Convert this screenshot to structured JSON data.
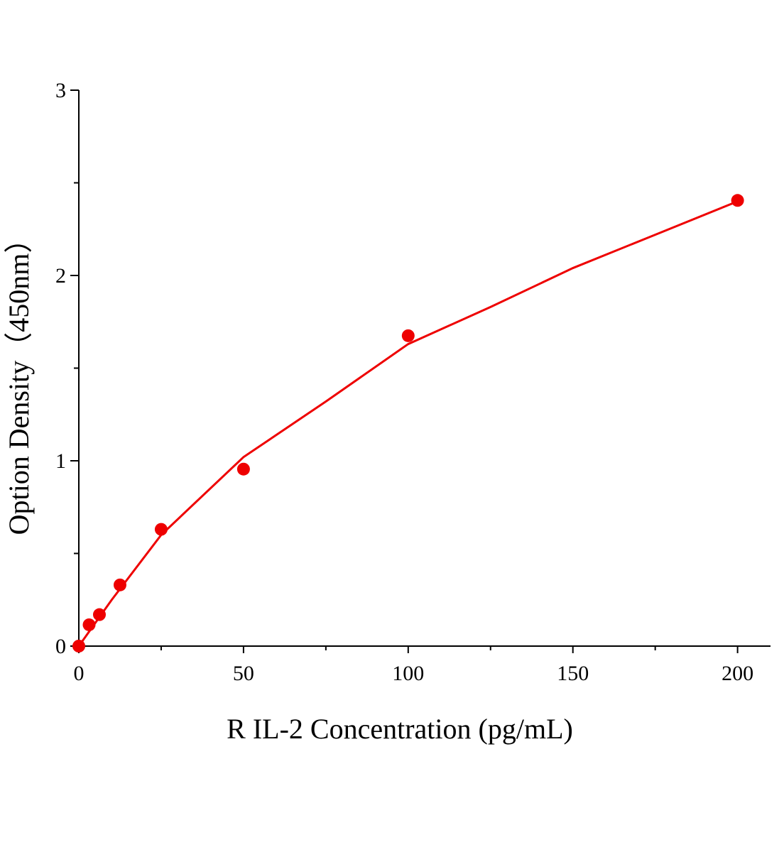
{
  "chart_data": {
    "type": "scatter",
    "x_label": "R IL-2 Concentration (pg/mL)",
    "y_label": "Option Density（450nm）",
    "xlim": [
      0,
      210
    ],
    "ylim": [
      0,
      3
    ],
    "xticks": [
      0,
      50,
      100,
      150,
      200
    ],
    "yticks": [
      0,
      1,
      2,
      3
    ],
    "series": [
      {
        "color": "#ee0000",
        "x": [
          0,
          3.125,
          6.25,
          12.5,
          25,
          50,
          100,
          200
        ],
        "values": [
          0,
          0.115,
          0.17,
          0.33,
          0.63,
          0.955,
          1.675,
          2.405
        ]
      },
      {
        "color": "#ee0000",
        "style": "line",
        "x": [
          0,
          10,
          25,
          50,
          75,
          100,
          125,
          150,
          175,
          200
        ],
        "values": [
          0,
          0.25,
          0.6,
          1.02,
          1.32,
          1.63,
          1.83,
          2.04,
          2.22,
          2.4
        ]
      }
    ]
  }
}
